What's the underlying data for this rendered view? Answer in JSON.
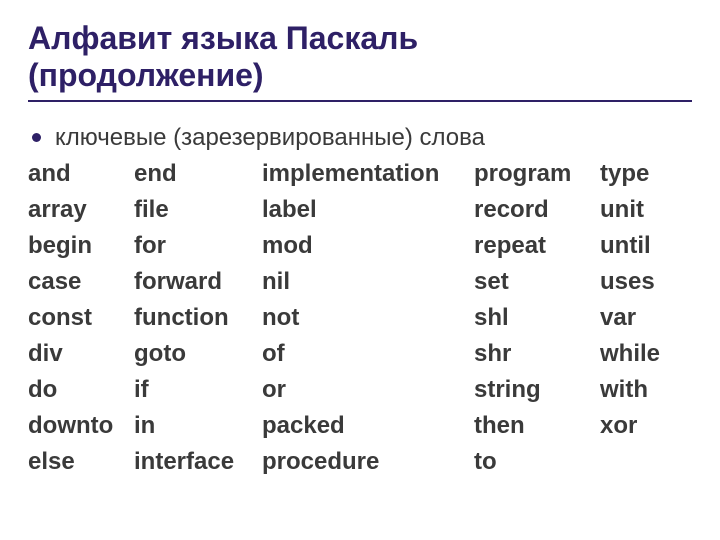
{
  "title_line1": "Алфавит языка Паскаль",
  "title_line2": "(продолжение)",
  "bullet_label": "ключевые (зарезервированные) слова",
  "columns": {
    "c1": [
      "and",
      "array",
      "begin",
      "case",
      "const",
      "div",
      "do",
      "downto",
      "else"
    ],
    "c2": [
      "end",
      "file",
      "for",
      "forward",
      "function",
      "goto",
      "if",
      "in",
      "interface"
    ],
    "c3": [
      "implementation",
      "label",
      "mod",
      "nil",
      "not",
      "of",
      "or",
      "packed",
      "procedure"
    ],
    "c4": [
      "program",
      "record",
      "repeat",
      "set",
      "shl",
      "shr",
      "string",
      "then",
      "to"
    ],
    "c5": [
      "type",
      "unit",
      "until",
      "uses",
      "var",
      "while",
      "with",
      "xor"
    ]
  },
  "styling": {
    "title_color": "#2e2066",
    "title_fontsize": 32,
    "body_fontsize": 24,
    "body_color": "#3a3a3a",
    "background": "#ffffff",
    "underline_color": "#2e2066",
    "bullet_color": "#2e2066"
  }
}
